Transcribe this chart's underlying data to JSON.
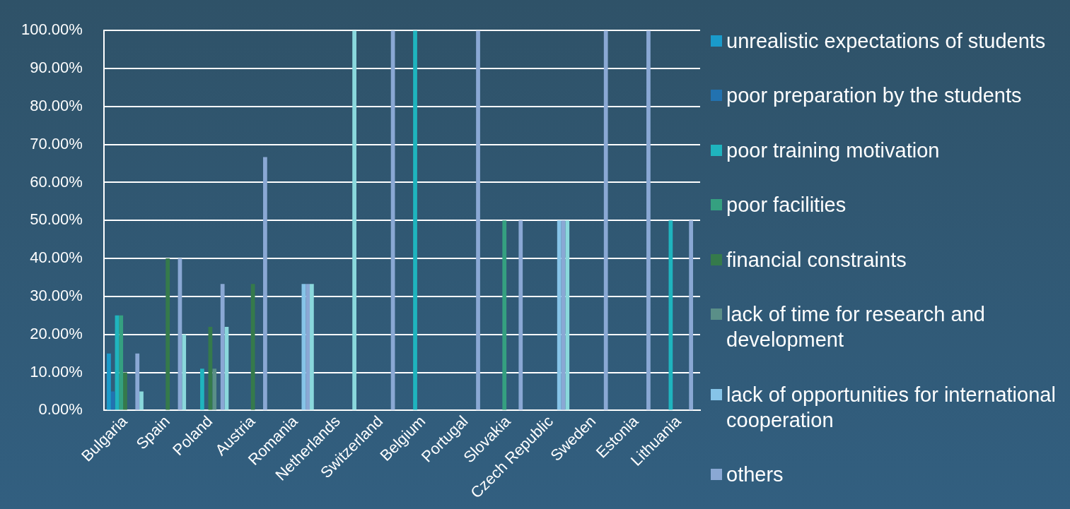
{
  "chart_data": {
    "type": "bar",
    "categories": [
      "Bulgaria",
      "Spain",
      "Poland",
      "Austria",
      "Romania",
      "Netherlands",
      "Switzerland",
      "Belgium",
      "Portugal",
      "Slovakia",
      "Czech Republic",
      "Sweden",
      "Estonia",
      "Lithuania"
    ],
    "series": [
      {
        "name": "unrealistic expectations of students",
        "color": "#1a9bcb",
        "values": [
          15,
          0,
          0,
          0,
          0,
          0,
          0,
          0,
          0,
          0,
          0,
          0,
          0,
          0
        ]
      },
      {
        "name": "poor preparation by the students",
        "color": "#2272b0",
        "values": [
          5,
          0,
          0,
          0,
          0,
          0,
          0,
          0,
          0,
          0,
          0,
          0,
          0,
          0
        ]
      },
      {
        "name": "poor training motivation",
        "color": "#1fb4be",
        "values": [
          25,
          0,
          11,
          0,
          0,
          0,
          0,
          100,
          0,
          0,
          0,
          0,
          0,
          50
        ]
      },
      {
        "name": "poor facilities",
        "color": "#35a080",
        "values": [
          25,
          0,
          0,
          0,
          0,
          0,
          0,
          0,
          0,
          50,
          0,
          0,
          0,
          0
        ]
      },
      {
        "name": "financial constraints",
        "color": "#357a4b",
        "values": [
          10,
          40,
          22,
          33.3,
          0,
          0,
          0,
          0,
          0,
          0,
          0,
          0,
          0,
          0
        ]
      },
      {
        "name": "lack of time for research and development",
        "color": "#5a8f88",
        "values": [
          0,
          0,
          11,
          0,
          0,
          0,
          0,
          0,
          0,
          0,
          0,
          0,
          0,
          0
        ]
      },
      {
        "name": "lack of opportunities for international cooperation",
        "color": "#86c4e8",
        "values": [
          0,
          0,
          0,
          0,
          33.3,
          0,
          0,
          0,
          0,
          0,
          50,
          0,
          0,
          0
        ]
      },
      {
        "name": "others",
        "color": "#8aa8d4",
        "values": [
          15,
          40,
          33.3,
          66.7,
          33.3,
          0,
          100,
          0,
          100,
          50,
          50,
          100,
          100,
          50
        ]
      },
      {
        "color": "#8ad8dc",
        "values": [
          5,
          20,
          22,
          0,
          33.3,
          100,
          0,
          0,
          0,
          0,
          50,
          0,
          0,
          0
        ]
      }
    ],
    "ylim": [
      0,
      100
    ],
    "yticks": [
      {
        "value": 0,
        "label": "0.00%"
      },
      {
        "value": 10,
        "label": "10.00%"
      },
      {
        "value": 20,
        "label": "20.00%"
      },
      {
        "value": 30,
        "label": "30.00%"
      },
      {
        "value": 40,
        "label": "40.00%"
      },
      {
        "value": 50,
        "label": "50.00%"
      },
      {
        "value": 60,
        "label": "60.00%"
      },
      {
        "value": 70,
        "label": "70.00%"
      },
      {
        "value": 80,
        "label": "80.00%"
      },
      {
        "value": 90,
        "label": "90.00%"
      },
      {
        "value": 100,
        "label": "100.00%"
      }
    ],
    "grid": "y",
    "legend": "right"
  }
}
